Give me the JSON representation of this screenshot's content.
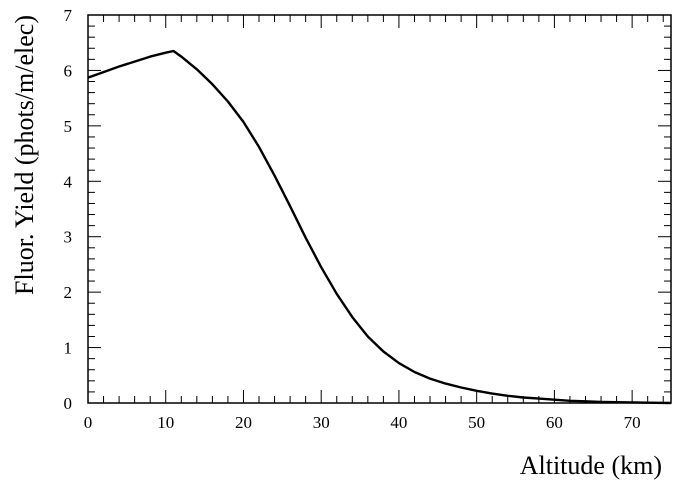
{
  "chart_data": {
    "type": "line",
    "title": "",
    "xlabel": "Altitude (km)",
    "ylabel": "Fluor. Yield (phots/m/elec)",
    "xlim": [
      0,
      75
    ],
    "ylim": [
      0,
      7
    ],
    "xticks": [
      0,
      10,
      20,
      30,
      40,
      50,
      60,
      70
    ],
    "yticks": [
      0,
      1,
      2,
      3,
      4,
      5,
      6,
      7
    ],
    "grid": false,
    "series": [
      {
        "x": [
          0,
          2,
          4,
          6,
          8,
          10,
          11,
          12,
          14,
          16,
          18,
          20,
          22,
          24,
          26,
          28,
          30,
          32,
          34,
          36,
          38,
          40,
          42,
          44,
          46,
          48,
          50,
          52,
          54,
          56,
          58,
          60,
          62,
          64,
          66,
          68,
          70,
          72,
          75
        ],
        "y": [
          5.87,
          5.97,
          6.07,
          6.16,
          6.25,
          6.32,
          6.35,
          6.25,
          6.02,
          5.75,
          5.44,
          5.07,
          4.62,
          4.1,
          3.55,
          2.98,
          2.45,
          1.97,
          1.55,
          1.2,
          0.93,
          0.72,
          0.56,
          0.44,
          0.35,
          0.28,
          0.22,
          0.17,
          0.13,
          0.1,
          0.08,
          0.06,
          0.04,
          0.03,
          0.02,
          0.015,
          0.01,
          0.005,
          0.0
        ],
        "color": "#000000"
      }
    ]
  }
}
